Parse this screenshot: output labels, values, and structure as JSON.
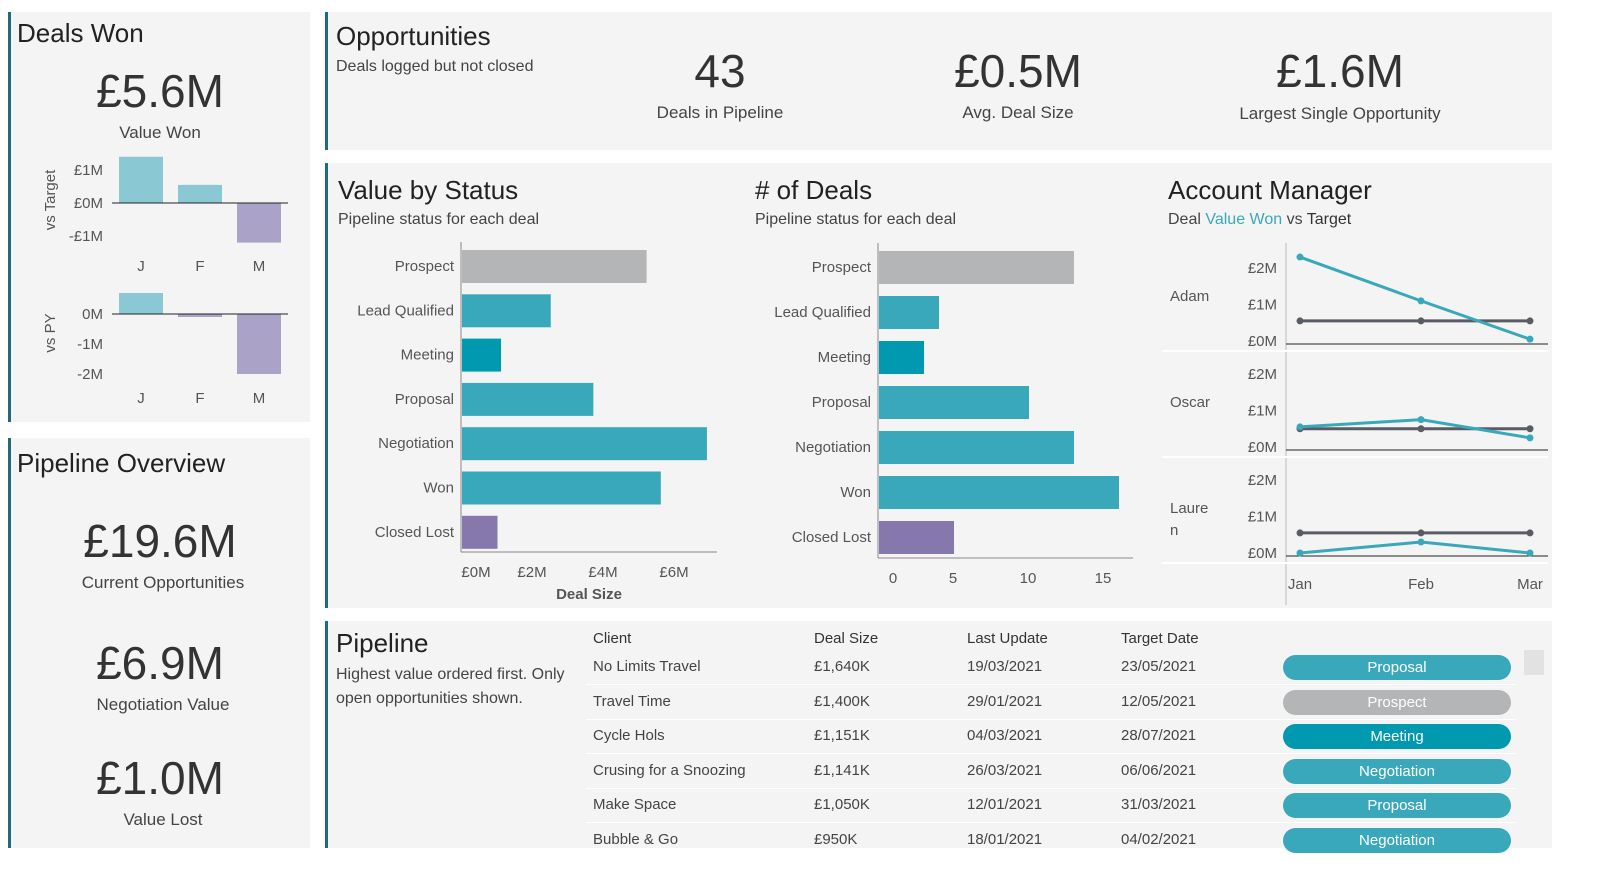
{
  "deals_won": {
    "title": "Deals Won",
    "value": "£5.6M",
    "value_label": "Value Won"
  },
  "pipeline_overview": {
    "title": "Pipeline Overview",
    "kpis": [
      {
        "value": "£19.6M",
        "label": "Current Opportunities"
      },
      {
        "value": "£6.9M",
        "label": "Negotiation Value"
      },
      {
        "value": "£1.0M",
        "label": "Value Lost"
      }
    ]
  },
  "opportunities": {
    "title": "Opportunities",
    "subtitle": "Deals logged but not closed",
    "kpis": [
      {
        "value": "43",
        "label": "Deals in Pipeline"
      },
      {
        "value": "£0.5M",
        "label": "Avg. Deal Size"
      },
      {
        "value": "£1.6M",
        "label": "Largest Single Opportunity"
      }
    ]
  },
  "value_by_status": {
    "title": "Value by Status",
    "subtitle": "Pipeline status for each deal"
  },
  "num_deals": {
    "title": "# of Deals",
    "subtitle": "Pipeline status for each deal"
  },
  "account_manager": {
    "title": "Account Manager",
    "subtitle_pre": "Deal ",
    "subtitle_hl": "Value Won",
    "subtitle_mid": " vs ",
    "subtitle_post": "Target"
  },
  "pipeline": {
    "title": "Pipeline",
    "subtitle": "Highest value ordered first. Only open opportunities shown.",
    "columns": [
      "Client",
      "Deal Size",
      "Last Update",
      "Target Date"
    ],
    "rows": [
      {
        "client": "No Limits Travel",
        "size": "£1,640K",
        "updated": "19/03/2021",
        "target": "23/05/2021",
        "status": "Proposal"
      },
      {
        "client": "Travel Time",
        "size": "£1,400K",
        "updated": "29/01/2021",
        "target": "12/05/2021",
        "status": "Prospect"
      },
      {
        "client": "Cycle Hols",
        "size": "£1,151K",
        "updated": "04/03/2021",
        "target": "28/07/2021",
        "status": "Meeting"
      },
      {
        "client": "Crusing for a Snoozing",
        "size": "£1,141K",
        "updated": "26/03/2021",
        "target": "06/06/2021",
        "status": "Negotiation"
      },
      {
        "client": "Make Space",
        "size": "£1,050K",
        "updated": "12/01/2021",
        "target": "31/03/2021",
        "status": "Proposal"
      },
      {
        "client": "Bubble & Go",
        "size": "£950K",
        "updated": "18/01/2021",
        "target": "04/02/2021",
        "status": "Negotiation"
      }
    ]
  },
  "colors": {
    "accent": "#1f6b7a",
    "teal": "#3aa8bb",
    "meeting": "#0099b0",
    "prospect": "#b3b5b6",
    "lost": "#8677ad",
    "positive": "#8ac8d4",
    "negative": "#aba3c7",
    "target": "#5a5c63"
  },
  "chart_data": [
    {
      "id": "vs_target",
      "type": "bar",
      "ylabel": "vs Target",
      "categories": [
        "J",
        "F",
        "M"
      ],
      "values": [
        1.4,
        0.55,
        -1.2
      ],
      "ticks": [
        "£1M",
        "£0M",
        "-£1M"
      ],
      "tick_values": [
        1,
        0,
        -1
      ],
      "unit": "£M"
    },
    {
      "id": "vs_py",
      "type": "bar",
      "ylabel": "vs PY",
      "categories": [
        "J",
        "F",
        "M"
      ],
      "values": [
        0.7,
        -0.1,
        -2.0
      ],
      "ticks": [
        "0M",
        "-1M",
        "-2M"
      ],
      "tick_values": [
        0,
        -1,
        -2
      ],
      "unit": "£M"
    },
    {
      "id": "value_by_status",
      "type": "bar",
      "orientation": "horizontal",
      "categories": [
        "Prospect",
        "Lead Qualified",
        "Meeting",
        "Proposal",
        "Negotiation",
        "Won",
        "Closed Lost"
      ],
      "values": [
        5.2,
        2.5,
        1.1,
        3.7,
        6.9,
        5.6,
        1.0
      ],
      "xlabel": "Deal Size",
      "ticks": [
        "£0M",
        "£2M",
        "£4M",
        "£6M"
      ],
      "tick_values": [
        0,
        2,
        4,
        6
      ],
      "xlim": [
        0,
        7.2
      ]
    },
    {
      "id": "num_deals",
      "type": "bar",
      "orientation": "horizontal",
      "categories": [
        "Prospect",
        "Lead Qualified",
        "Meeting",
        "Proposal",
        "Negotiation",
        "Won",
        "Closed Lost"
      ],
      "values": [
        13,
        4,
        3,
        10,
        13,
        16,
        5
      ],
      "ticks": [
        "0",
        "5",
        "10",
        "15"
      ],
      "tick_values": [
        0,
        5,
        10,
        15
      ],
      "xlim": [
        0,
        17
      ]
    },
    {
      "id": "account_manager",
      "type": "line",
      "x": [
        "Jan",
        "Feb",
        "Mar"
      ],
      "ticks": [
        "£2M",
        "£1M",
        "£0M"
      ],
      "tick_values": [
        2,
        1,
        0
      ],
      "panels": [
        {
          "name": "Adam",
          "series": [
            {
              "name": "Value Won",
              "values": [
                2.3,
                1.1,
                0.05
              ]
            },
            {
              "name": "Target",
              "values": [
                0.55,
                0.55,
                0.55
              ]
            }
          ]
        },
        {
          "name": "Oscar",
          "series": [
            {
              "name": "Value Won",
              "values": [
                0.55,
                0.75,
                0.25
              ]
            },
            {
              "name": "Target",
              "values": [
                0.5,
                0.5,
                0.5
              ]
            }
          ]
        },
        {
          "name": "Laure\nn",
          "series": [
            {
              "name": "Value Won",
              "values": [
                0.0,
                0.3,
                0.0
              ]
            },
            {
              "name": "Target",
              "values": [
                0.55,
                0.55,
                0.55
              ]
            }
          ]
        }
      ]
    }
  ]
}
